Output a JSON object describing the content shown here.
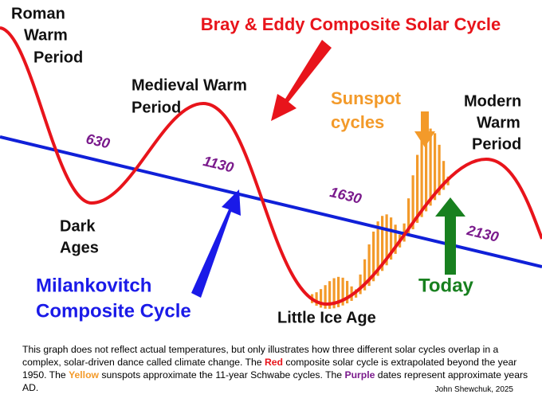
{
  "title": "Bray & Eddy Composite Solar Cycle",
  "labels": [
    {
      "lines": [
        "Roman",
        "Warm",
        "Period"
      ]
    },
    {
      "lines": [
        "Medieval Warm",
        "Period"
      ]
    },
    {
      "lines": [
        "Sunspot",
        "cycles"
      ]
    },
    {
      "lines": [
        "Modern",
        "Warm",
        "Period"
      ]
    },
    {
      "lines": [
        "Dark",
        "Ages"
      ]
    },
    {
      "lines": [
        "Milankovitch",
        "Composite Cycle"
      ]
    },
    {
      "lines": [
        "Little Ice Age"
      ]
    },
    {
      "lines": [
        "Today"
      ]
    }
  ],
  "dates": [
    "630",
    "1130",
    "1630",
    "2130"
  ],
  "caption": [
    "This graph does not reflect actual temperatures, but only illustrates how three different solar cycles overlap in a complex, solar-driven dance called climate change.  The ",
    "Red",
    " composite solar cycle is extrapolated beyond the year 1950.  The ",
    "Yellow",
    " sunspots approximate the 11-year Schwabe cycles. The ",
    "Purple",
    " dates represent approximate years AD."
  ],
  "credit": "John Shewchuk, 2025"
}
